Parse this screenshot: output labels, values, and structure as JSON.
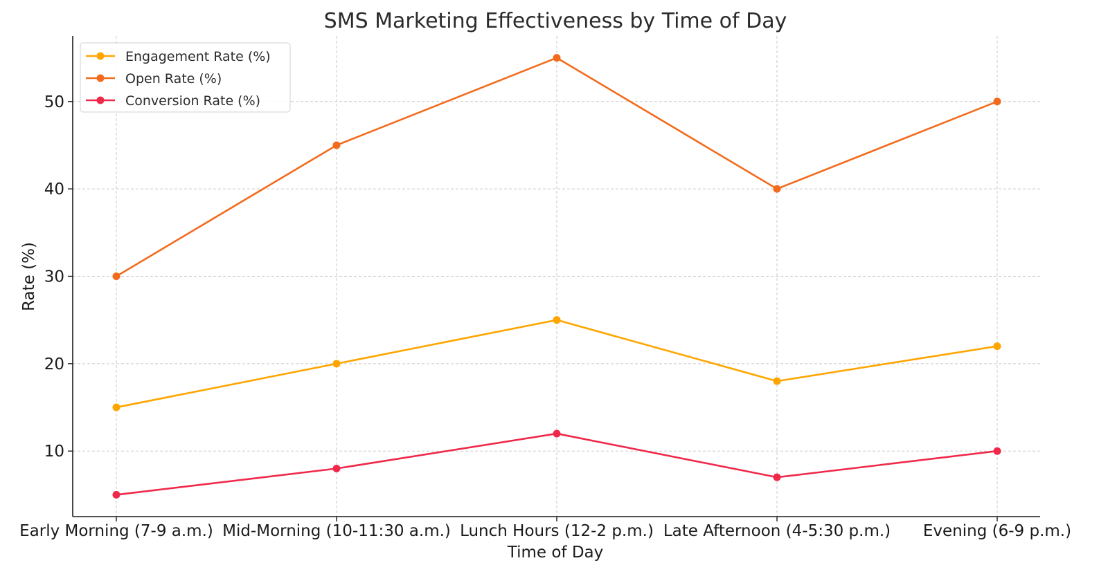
{
  "chart_data": {
    "type": "line",
    "title": "SMS Marketing Effectiveness by Time of Day",
    "xlabel": "Time of Day",
    "ylabel": "Rate (%)",
    "categories": [
      "Early Morning (7-9 a.m.)",
      "Mid-Morning (10-11:30 a.m.)",
      "Lunch Hours (12-2 p.m.)",
      "Late Afternoon (4-5:30 p.m.)",
      "Evening (6-9 p.m.)"
    ],
    "series": [
      {
        "name": "Engagement Rate (%)",
        "color": "#FFA500",
        "values": [
          15,
          20,
          25,
          18,
          22
        ]
      },
      {
        "name": "Open Rate (%)",
        "color": "#F26B1D",
        "values": [
          30,
          45,
          55,
          40,
          50
        ]
      },
      {
        "name": "Conversion Rate (%)",
        "color": "#F0284A",
        "values": [
          5,
          8,
          12,
          7,
          10
        ]
      }
    ],
    "ylim": [
      2.5,
      57.5
    ],
    "yticks": [
      10,
      20,
      30,
      40,
      50
    ],
    "grid": true,
    "legend_position": "top-left"
  }
}
